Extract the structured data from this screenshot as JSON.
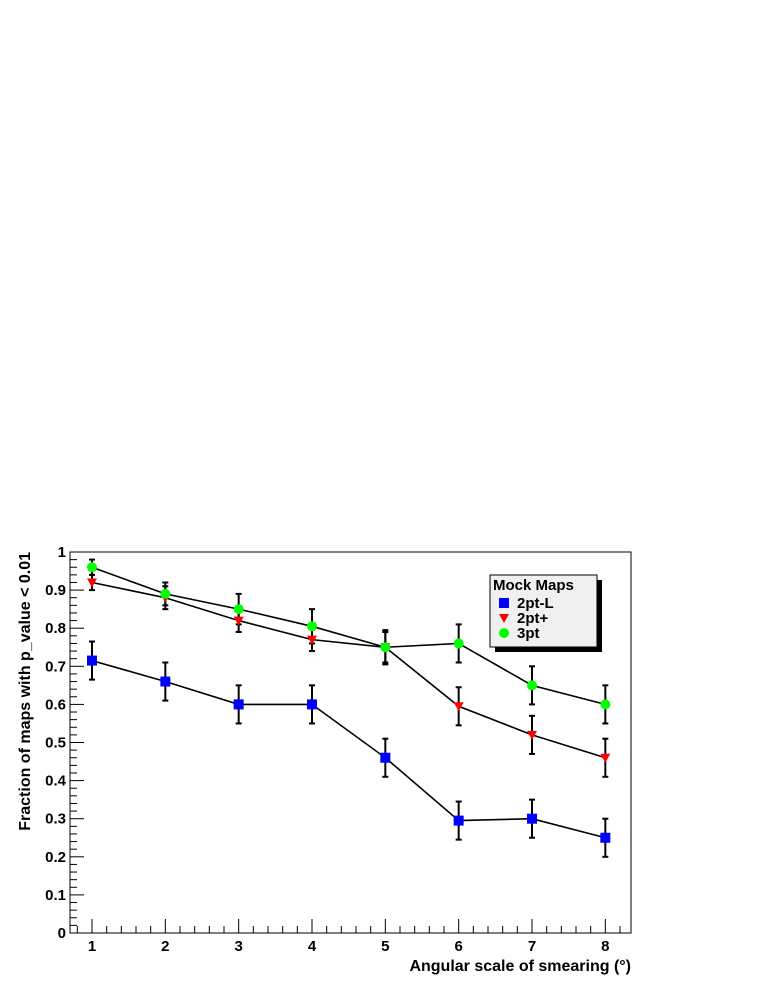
{
  "chart_data": {
    "type": "line",
    "title": "",
    "xlabel": "Angular scale of smearing (°)",
    "ylabel": "Fraction of maps with p_value < 0.01",
    "xlim": [
      0.7,
      8.35
    ],
    "ylim": [
      0,
      1
    ],
    "x": [
      1,
      2,
      3,
      4,
      5,
      6,
      7,
      8
    ],
    "x_ticks": [
      "1",
      "2",
      "3",
      "4",
      "5",
      "6",
      "7",
      "8"
    ],
    "y_ticks": [
      "0",
      "0.1",
      "0.2",
      "0.3",
      "0.4",
      "0.5",
      "0.6",
      "0.7",
      "0.8",
      "0.9",
      "1"
    ],
    "grid": false,
    "legend": {
      "title": "Mock Maps",
      "placement": "top-right",
      "entries": [
        "2pt-L",
        "2pt+",
        "3pt"
      ]
    },
    "series": [
      {
        "name": "2pt-L",
        "marker": "square",
        "color": "#0000ff",
        "values": [
          0.715,
          0.66,
          0.6,
          0.6,
          0.46,
          0.295,
          0.3,
          0.25
        ],
        "errors": [
          0.05,
          0.05,
          0.05,
          0.05,
          0.05,
          0.05,
          0.05,
          0.05
        ]
      },
      {
        "name": "2pt+",
        "marker": "triangle-down",
        "color": "#ff0000",
        "values": [
          0.92,
          0.88,
          0.82,
          0.77,
          0.75,
          0.595,
          0.52,
          0.46
        ],
        "errors": [
          0.02,
          0.03,
          0.03,
          0.03,
          0.04,
          0.05,
          0.05,
          0.05
        ]
      },
      {
        "name": "3pt",
        "marker": "circle",
        "color": "#00ff00",
        "values": [
          0.96,
          0.89,
          0.85,
          0.805,
          0.75,
          0.76,
          0.65,
          0.6
        ],
        "errors": [
          0.02,
          0.03,
          0.04,
          0.045,
          0.045,
          0.05,
          0.05,
          0.05
        ]
      }
    ]
  }
}
